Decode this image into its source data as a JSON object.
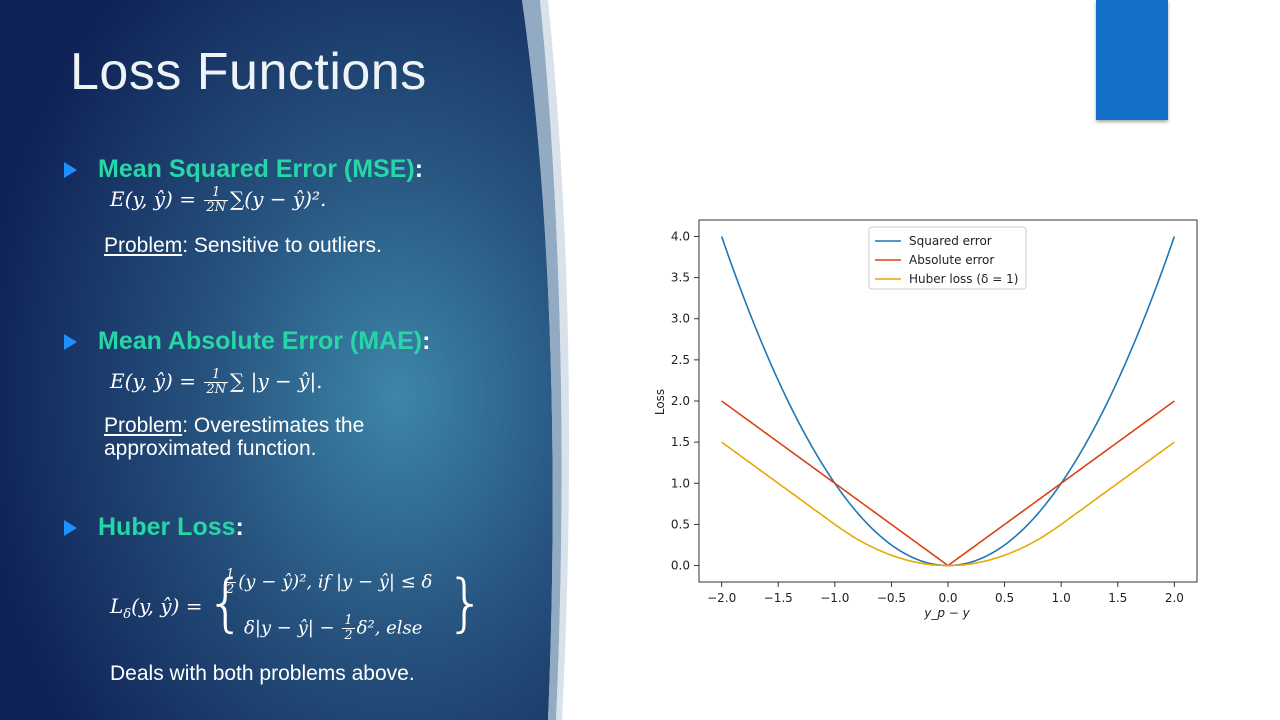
{
  "slide": {
    "title": "Loss Functions",
    "sections": [
      {
        "heading": "Mean Squared Error (MSE)",
        "formula": {
          "lhs": "E(y, ŷ) =",
          "frac_num": "1",
          "frac_den": "2N",
          "rhs": "∑(y − ŷ)².",
          "rhs_sq": ""
        },
        "note_label": "Problem",
        "note_text": ": Sensitive to outliers."
      },
      {
        "heading": "Mean Absolute Error (MAE)",
        "formula": {
          "lhs": "E(y, ŷ) =",
          "frac_num": "1",
          "frac_den": "2N",
          "rhs": "∑ |y − ŷ|."
        },
        "note_label": "Problem",
        "note_text_line1": ": Overestimates the",
        "note_text_line2": "approximated function."
      },
      {
        "heading": "Huber Loss",
        "formula": {
          "lhs": "L",
          "lhs_sub": "δ",
          "lhs_rest": "(y, ŷ) =",
          "case1_frac_num": "1",
          "case1_frac_den": "2",
          "case1": "(y − ŷ)², if |y − ŷ| ≤ δ",
          "case2_pre": "δ|y − ŷ| −",
          "case2_frac_num": "1",
          "case2_frac_den": "2",
          "case2_post": "δ², else"
        },
        "note_text": "Deals with both problems above."
      }
    ]
  },
  "colors": {
    "heading": "#27d6a6",
    "bullet": "#1e90ff",
    "accent": "#1270c9",
    "squared": "#1f77b4",
    "absolute": "#d84315",
    "huber": "#e8a800"
  },
  "chart_data": {
    "type": "line",
    "xlabel": "y_p − y",
    "ylabel": "Loss",
    "xlim": [
      -2.0,
      2.0
    ],
    "ylim": [
      0.0,
      4.0
    ],
    "xticks": [
      -2.0,
      -1.5,
      -1.0,
      -0.5,
      0.0,
      0.5,
      1.0,
      1.5,
      2.0
    ],
    "xtick_labels": [
      "−2.0",
      "−1.5",
      "−1.0",
      "−0.5",
      "0.0",
      "0.5",
      "1.0",
      "1.5",
      "2.0"
    ],
    "yticks": [
      0.0,
      0.5,
      1.0,
      1.5,
      2.0,
      2.5,
      3.0,
      3.5,
      4.0
    ],
    "ytick_labels": [
      "0.0",
      "0.5",
      "1.0",
      "1.5",
      "2.0",
      "2.5",
      "3.0",
      "3.5",
      "4.0"
    ],
    "grid": true,
    "legend_position": "top-center",
    "x": [
      -2.0,
      -1.75,
      -1.5,
      -1.25,
      -1.0,
      -0.75,
      -0.5,
      -0.25,
      0.0,
      0.25,
      0.5,
      0.75,
      1.0,
      1.25,
      1.5,
      1.75,
      2.0
    ],
    "series": [
      {
        "name": "Squared error",
        "values": [
          4.0,
          3.0625,
          2.25,
          1.5625,
          1.0,
          0.5625,
          0.25,
          0.0625,
          0.0,
          0.0625,
          0.25,
          0.5625,
          1.0,
          1.5625,
          2.25,
          3.0625,
          4.0
        ]
      },
      {
        "name": "Absolute error",
        "values": [
          2.0,
          1.75,
          1.5,
          1.25,
          1.0,
          0.75,
          0.5,
          0.25,
          0.0,
          0.25,
          0.5,
          0.75,
          1.0,
          1.25,
          1.5,
          1.75,
          2.0
        ]
      },
      {
        "name": "Huber loss (δ = 1)",
        "values": [
          1.5,
          1.25,
          1.0,
          0.75,
          0.5,
          0.28125,
          0.125,
          0.03125,
          0.0,
          0.03125,
          0.125,
          0.28125,
          0.5,
          0.75,
          1.0,
          1.25,
          1.5
        ]
      }
    ]
  }
}
